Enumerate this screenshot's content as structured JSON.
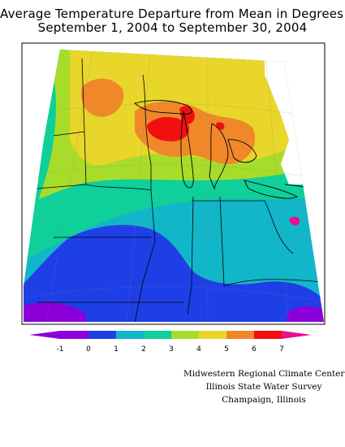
{
  "title": "Average Temperature Departure from Mean in Degrees F",
  "subtitle": "September 1, 2004 to September 30, 2004",
  "legend": {
    "ticks": [
      "-1",
      "0",
      "1",
      "2",
      "3",
      "4",
      "5",
      "6",
      "7"
    ],
    "colors": [
      "#8b00d8",
      "#1f3fe6",
      "#12b6c9",
      "#0fcf9a",
      "#a8dc2a",
      "#e8d62a",
      "#f0882a",
      "#f01010",
      "#e8108c"
    ]
  },
  "credits": {
    "line1": "Midwestern Regional Climate Center",
    "line2": "Illinois State Water Survey",
    "line3": "Champaign, Illinois"
  }
}
